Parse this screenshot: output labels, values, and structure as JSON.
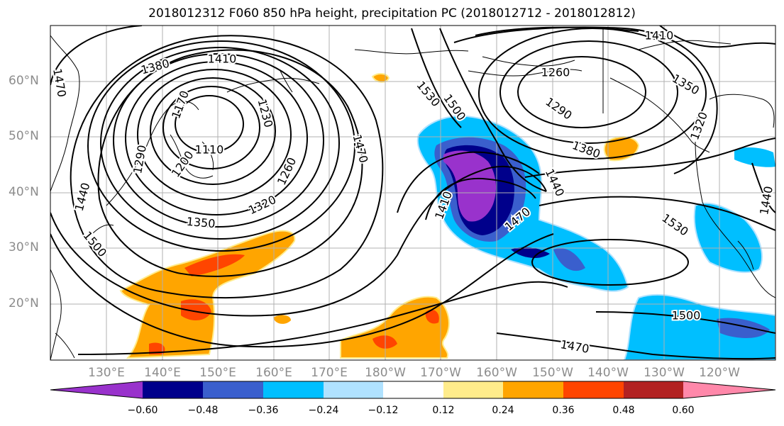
{
  "title": "2018012312 F060 850 hPa height, precipitation PC (2018012712 - 2018012812)",
  "map": {
    "lat_labels": [
      "60°N",
      "50°N",
      "40°N",
      "30°N",
      "20°N"
    ],
    "lon_labels": [
      "130°E",
      "140°E",
      "150°E",
      "160°E",
      "170°E",
      "180°W",
      "170°W",
      "160°W",
      "150°W",
      "140°W",
      "130°W",
      "120°W"
    ],
    "contour_labels": [
      "1410",
      "1380",
      "1470",
      "1110",
      "1170",
      "1200",
      "1230",
      "1290",
      "1260",
      "1320",
      "1350",
      "1440",
      "1500",
      "1470",
      "1530",
      "1500",
      "1410",
      "1470",
      "1440",
      "1530",
      "1260",
      "1290",
      "1380",
      "1410",
      "1350",
      "1320",
      "1440",
      "1500",
      "1470"
    ],
    "colors": {
      "land_outline": "#000000",
      "grid": "#b0b0b0",
      "contour": "#000000"
    }
  },
  "colorbar": {
    "colors": [
      "#9932cc",
      "#00008b",
      "#3a5fcd",
      "#00bfff",
      "#b0e2ff",
      "#ffffff",
      "#ffec8b",
      "#ffa500",
      "#ff4500",
      "#b22222",
      "#ff88aa"
    ],
    "ticks": [
      "−0.60",
      "−0.48",
      "−0.36",
      "−0.24",
      "−0.12",
      "0.12",
      "0.24",
      "0.36",
      "0.48",
      "0.60"
    ]
  }
}
